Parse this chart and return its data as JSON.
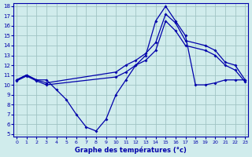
{
  "title": "Graphe des températures (°c)",
  "bg_color": "#d0ecec",
  "grid_color": "#a0c4c4",
  "line_color": "#0000aa",
  "xlim": [
    -0.3,
    23.3
  ],
  "ylim": [
    4.7,
    18.3
  ],
  "xticks": [
    0,
    1,
    2,
    3,
    4,
    5,
    6,
    7,
    8,
    9,
    10,
    11,
    12,
    13,
    14,
    15,
    16,
    17,
    18,
    19,
    20,
    21,
    22,
    23
  ],
  "yticks": [
    5,
    6,
    7,
    8,
    9,
    10,
    11,
    12,
    13,
    14,
    15,
    16,
    17,
    18
  ],
  "curve_wavy_x": [
    0,
    1,
    2,
    3,
    4,
    5,
    6,
    7,
    8,
    9,
    10,
    11,
    12,
    13,
    14,
    15,
    16,
    17,
    18,
    19,
    20,
    21,
    22,
    23
  ],
  "curve_wavy_y": [
    10.5,
    11.0,
    10.5,
    10.5,
    9.5,
    8.5,
    7.0,
    5.7,
    5.3,
    6.5,
    9.0,
    10.5,
    12.0,
    13.0,
    16.5,
    18.0,
    16.5,
    15.0,
    10.0,
    10.0,
    10.2,
    10.5,
    10.5,
    10.5
  ],
  "curve_upper_x": [
    0,
    1,
    2,
    3,
    10,
    11,
    12,
    13,
    14,
    15,
    16,
    17,
    19,
    20,
    21,
    22,
    23
  ],
  "curve_upper_y": [
    10.5,
    11.0,
    10.5,
    10.2,
    11.3,
    12.0,
    12.5,
    13.2,
    14.3,
    17.2,
    16.3,
    14.5,
    14.0,
    13.5,
    12.3,
    12.0,
    10.5
  ],
  "curve_lower_x": [
    0,
    1,
    2,
    3,
    10,
    11,
    12,
    13,
    14,
    15,
    16,
    17,
    19,
    20,
    21,
    22,
    23
  ],
  "curve_lower_y": [
    10.4,
    10.9,
    10.4,
    10.0,
    10.8,
    11.3,
    12.0,
    12.5,
    13.5,
    16.5,
    15.5,
    14.0,
    13.5,
    13.0,
    12.0,
    11.5,
    10.3
  ]
}
